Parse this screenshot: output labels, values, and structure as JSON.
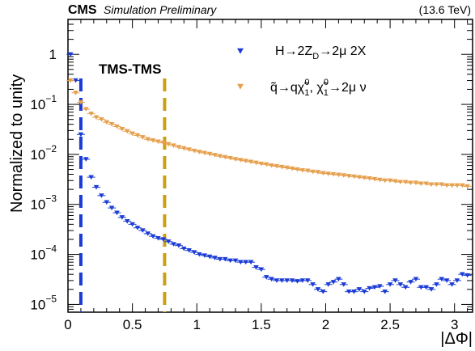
{
  "header": {
    "experiment": "CMS",
    "status": "Simulation Preliminary",
    "energy": "(13.6 TeV)"
  },
  "annotation": "TMS-TMS",
  "chart_data": {
    "type": "scatter",
    "xlabel": "|ΔΦ|",
    "ylabel": "Normalized to unity",
    "xlim": [
      0,
      3.14
    ],
    "ylim": [
      7e-06,
      5
    ],
    "yscale": "log",
    "xticks": [
      0,
      0.5,
      1,
      1.5,
      2,
      2.5,
      3
    ],
    "xtick_labels": [
      "0",
      "0.5",
      "1",
      "1.5",
      "2",
      "2.5",
      "3"
    ],
    "yticks": [
      1e-05,
      0.0001,
      0.001,
      0.01,
      0.1,
      1
    ],
    "ytick_labels": [
      {
        "base": "10",
        "exp": "−5"
      },
      {
        "base": "10",
        "exp": "−4"
      },
      {
        "base": "10",
        "exp": "−3"
      },
      {
        "base": "10",
        "exp": "−2"
      },
      {
        "base": "10",
        "exp": "−1"
      },
      {
        "base": "1",
        "exp": ""
      }
    ],
    "legend_position": "top-right",
    "grid": false,
    "cut_lines": [
      {
        "x": 0.1,
        "color": "#1a3bd6"
      },
      {
        "x": 0.75,
        "color": "#c8a012"
      }
    ],
    "series": [
      {
        "name": "H→2Z_D→2μ 2X",
        "legend": {
          "main": "H→2Z",
          "sub": "D",
          "rest": "→2μ 2X"
        },
        "color": "#1a3bd6",
        "x": [
          0.02,
          0.06,
          0.1,
          0.14,
          0.18,
          0.22,
          0.26,
          0.3,
          0.34,
          0.38,
          0.42,
          0.46,
          0.5,
          0.54,
          0.58,
          0.62,
          0.66,
          0.7,
          0.74,
          0.78,
          0.82,
          0.86,
          0.9,
          0.94,
          0.98,
          1.02,
          1.06,
          1.1,
          1.14,
          1.18,
          1.22,
          1.26,
          1.3,
          1.34,
          1.38,
          1.42,
          1.46,
          1.5,
          1.54,
          1.58,
          1.62,
          1.66,
          1.7,
          1.74,
          1.78,
          1.82,
          1.86,
          1.9,
          1.94,
          1.98,
          2.02,
          2.06,
          2.1,
          2.14,
          2.18,
          2.22,
          2.26,
          2.3,
          2.34,
          2.38,
          2.42,
          2.46,
          2.5,
          2.54,
          2.58,
          2.62,
          2.66,
          2.7,
          2.74,
          2.78,
          2.82,
          2.86,
          2.9,
          2.94,
          2.98,
          3.02,
          3.06,
          3.1
        ],
        "y": [
          1.0,
          0.3,
          0.025,
          0.008,
          0.0035,
          0.0022,
          0.0015,
          0.0011,
          0.00085,
          0.00068,
          0.00055,
          0.00046,
          0.0004,
          0.00034,
          0.0003,
          0.00026,
          0.00023,
          0.00021,
          0.0002,
          0.00018,
          0.00016,
          0.00015,
          0.00013,
          0.00012,
          0.00011,
          0.0001,
          9.5e-05,
          9e-05,
          8.5e-05,
          8e-05,
          8e-05,
          7.5e-05,
          7.5e-05,
          7e-05,
          7e-05,
          7e-05,
          5.5e-05,
          5e-05,
          3.5e-05,
          3.2e-05,
          3e-05,
          3e-05,
          3e-05,
          3e-05,
          2.9e-05,
          3e-05,
          3e-05,
          2.5e-05,
          2e-05,
          1.8e-05,
          2.5e-05,
          2.8e-05,
          3.2e-05,
          2.5e-05,
          1.8e-05,
          1.8e-05,
          2e-05,
          1.8e-05,
          2.1e-05,
          2.2e-05,
          2.3e-05,
          1.8e-05,
          2.5e-05,
          3e-05,
          2.5e-05,
          2.2e-05,
          2.8e-05,
          3.2e-05,
          2.2e-05,
          2.2e-05,
          2e-05,
          2.5e-05,
          3.2e-05,
          3e-05,
          2.5e-05,
          3e-05,
          4e-05,
          3.8e-05
        ]
      },
      {
        "name": "q̃→qχ̃₁⁰, χ̃₁⁰→2μ ν",
        "legend": {
          "text": "q̃→qχ̃",
          "sub1": "1",
          "sup1": "0",
          "mid": ", χ̃",
          "sub2": "1",
          "sup2": "0",
          "rest": "→2μ ν"
        },
        "color": "#e6a04e",
        "x": [
          0.02,
          0.06,
          0.1,
          0.14,
          0.18,
          0.22,
          0.26,
          0.3,
          0.34,
          0.38,
          0.42,
          0.46,
          0.5,
          0.54,
          0.58,
          0.62,
          0.66,
          0.7,
          0.74,
          0.78,
          0.82,
          0.86,
          0.9,
          0.94,
          0.98,
          1.02,
          1.06,
          1.1,
          1.14,
          1.18,
          1.22,
          1.26,
          1.3,
          1.34,
          1.38,
          1.42,
          1.46,
          1.5,
          1.54,
          1.58,
          1.62,
          1.66,
          1.7,
          1.74,
          1.78,
          1.82,
          1.86,
          1.9,
          1.94,
          1.98,
          2.02,
          2.06,
          2.1,
          2.14,
          2.18,
          2.22,
          2.26,
          2.3,
          2.34,
          2.38,
          2.42,
          2.46,
          2.5,
          2.54,
          2.58,
          2.62,
          2.66,
          2.7,
          2.74,
          2.78,
          2.82,
          2.86,
          2.9,
          2.94,
          2.98,
          3.02,
          3.06,
          3.1
        ],
        "y": [
          0.3,
          0.17,
          0.11,
          0.08,
          0.065,
          0.055,
          0.05,
          0.044,
          0.04,
          0.036,
          0.032,
          0.029,
          0.026,
          0.024,
          0.022,
          0.02,
          0.019,
          0.018,
          0.017,
          0.016,
          0.015,
          0.014,
          0.0132,
          0.0125,
          0.0118,
          0.0112,
          0.0107,
          0.0102,
          0.0097,
          0.0092,
          0.0088,
          0.0084,
          0.008,
          0.0077,
          0.0074,
          0.0071,
          0.0068,
          0.0065,
          0.0063,
          0.006,
          0.0058,
          0.0056,
          0.0054,
          0.0052,
          0.005,
          0.0048,
          0.0047,
          0.0045,
          0.0044,
          0.0042,
          0.0041,
          0.004,
          0.0039,
          0.0038,
          0.0037,
          0.0036,
          0.0035,
          0.0034,
          0.0033,
          0.0032,
          0.0031,
          0.003,
          0.003,
          0.0029,
          0.0028,
          0.0028,
          0.0027,
          0.0027,
          0.0026,
          0.0026,
          0.0025,
          0.0025,
          0.0025,
          0.0024,
          0.0024,
          0.0024,
          0.0024,
          0.0023
        ]
      }
    ]
  }
}
